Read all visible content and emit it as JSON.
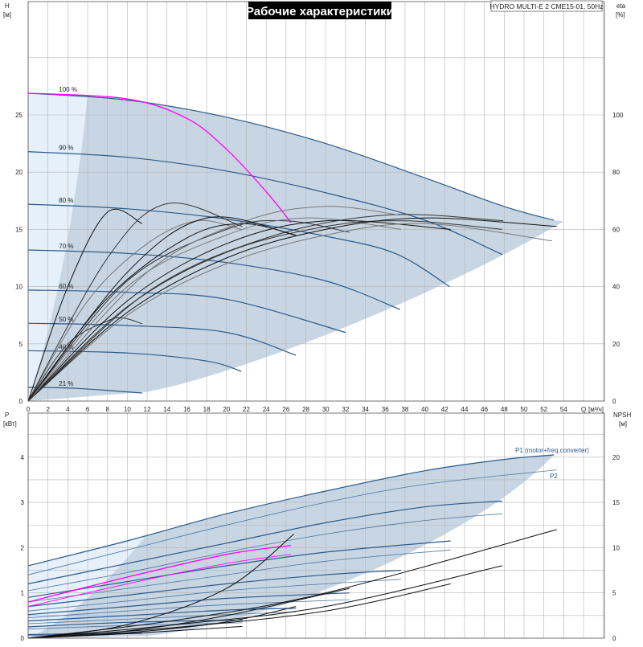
{
  "title": "Рабочие характеристики",
  "model": "HYDRO MULTI-E 2 CME15-01, 50Hz",
  "colors": {
    "area": "#c8d6e4",
    "area_light": "#e6f0fa",
    "curve_blue": "#2a5a8c",
    "curve_black": "#111111",
    "magenta": "#ff00ff",
    "grid": "#b4b4b4",
    "title_bg": "#000000",
    "title_fg": "#ffffff"
  },
  "chart_data": [
    {
      "id": "head",
      "type": "line",
      "ylabel": "H",
      "yunit": "[м]",
      "y2label": "eta",
      "y2unit": "[%]",
      "xlabel": "Q",
      "xunit": "[м³/ч]",
      "xlim": [
        0,
        60
      ],
      "ylim": [
        0,
        30
      ],
      "y2lim": [
        0,
        120
      ],
      "xticks": [
        0,
        2,
        4,
        6,
        8,
        10,
        12,
        14,
        16,
        18,
        20,
        22,
        24,
        26,
        28,
        30,
        32,
        34,
        36,
        38,
        40,
        42,
        44,
        46,
        48,
        50,
        52,
        54
      ],
      "yticks": [
        0,
        5,
        10,
        15,
        20,
        25
      ],
      "y2ticks": [
        0,
        20,
        40,
        60,
        80,
        100
      ],
      "grid": true,
      "speed_curves": [
        {
          "name": "100 %",
          "q": [
            0,
            10,
            20,
            30,
            40,
            48,
            53
          ],
          "h": [
            26.9,
            26.3,
            24.8,
            22.5,
            19.5,
            17.0,
            15.8
          ]
        },
        {
          "name": "90 %",
          "q": [
            0,
            10,
            20,
            30,
            40,
            47.8
          ],
          "h": [
            21.8,
            21.3,
            20.1,
            18.2,
            15.8,
            12.8
          ]
        },
        {
          "name": "80 %",
          "q": [
            0,
            10,
            20,
            30,
            37,
            42.5
          ],
          "h": [
            17.2,
            16.8,
            15.9,
            14.4,
            12.9,
            10.0
          ]
        },
        {
          "name": "70 %",
          "q": [
            0,
            10,
            20,
            30,
            37.5
          ],
          "h": [
            13.2,
            12.9,
            12.1,
            10.5,
            8.0
          ]
        },
        {
          "name": "60 %",
          "q": [
            0,
            10,
            20,
            32
          ],
          "h": [
            9.7,
            9.5,
            8.9,
            6.0
          ]
        },
        {
          "name": "50 %",
          "q": [
            0,
            10,
            20,
            27
          ],
          "h": [
            6.8,
            6.6,
            6.0,
            4.0
          ]
        },
        {
          "name": "40 %",
          "q": [
            0,
            10,
            18,
            21.5
          ],
          "h": [
            4.4,
            4.2,
            3.5,
            2.6
          ]
        },
        {
          "name": "21 %",
          "q": [
            0,
            5,
            11.5
          ],
          "h": [
            1.2,
            1.1,
            0.7
          ]
        }
      ],
      "operating_point_curve": {
        "q": [
          0,
          10,
          16,
          20,
          24,
          26.5
        ],
        "h": [
          26.9,
          26.4,
          24.7,
          22.0,
          18.3,
          15.6
        ]
      },
      "efficiency_curves": [
        {
          "q": [
            0,
            4,
            8,
            11.5
          ],
          "eta": [
            0,
            40,
            66,
            62
          ]
        },
        {
          "q": [
            0,
            4,
            8,
            9.6,
            11.5
          ],
          "eta": [
            0,
            20,
            28,
            29,
            27
          ]
        },
        {
          "q": [
            0,
            6,
            12,
            17,
            21.5
          ],
          "eta": [
            0,
            35,
            55,
            63,
            60
          ]
        },
        {
          "q": [
            0,
            8,
            16,
            21.6,
            27
          ],
          "eta": [
            0,
            36,
            57,
            62,
            58
          ]
        },
        {
          "q": [
            0,
            10,
            20,
            26,
            32.4
          ],
          "eta": [
            0,
            42,
            60,
            63,
            59
          ]
        },
        {
          "q": [
            0,
            10,
            20,
            28,
            37.6
          ],
          "eta": [
            0,
            40,
            58,
            64,
            60
          ]
        },
        {
          "q": [
            0,
            10,
            20,
            30,
            42.6
          ],
          "eta": [
            0,
            35,
            55,
            63,
            60
          ]
        },
        {
          "q": [
            0,
            10,
            20,
            30,
            38,
            47.8
          ],
          "eta": [
            0,
            33,
            52,
            61,
            63,
            60
          ]
        },
        {
          "q": [
            0,
            10,
            20,
            30,
            40,
            52.8
          ],
          "eta": [
            0,
            30,
            48,
            58,
            62,
            56
          ]
        },
        {
          "q": [
            0,
            10,
            20,
            30,
            40,
            53.3
          ],
          "eta": [
            0,
            31,
            50,
            60,
            64,
            61
          ]
        },
        {
          "q": [
            0,
            12,
            24,
            36,
            47.9
          ],
          "eta": [
            0,
            38,
            57,
            65,
            63
          ]
        },
        {
          "q": [
            0,
            12,
            22,
            30,
            37.5
          ],
          "eta": [
            0,
            45,
            63,
            68,
            65
          ]
        },
        {
          "q": [
            0,
            10,
            18,
            26.9
          ],
          "eta": [
            0,
            45,
            64,
            58
          ]
        },
        {
          "q": [
            0,
            8,
            14,
            21.6
          ],
          "eta": [
            0,
            50,
            69,
            61
          ]
        }
      ]
    },
    {
      "id": "power",
      "type": "line",
      "ylabel": "P",
      "yunit": "[кВт]",
      "y2label": "NPSH",
      "y2unit": "[м]",
      "xlim": [
        0,
        60
      ],
      "ylim": [
        0,
        4.8
      ],
      "y2lim": [
        0,
        24
      ],
      "yticks": [
        0,
        1,
        2,
        3,
        4
      ],
      "y2ticks": [
        0,
        5,
        10,
        15,
        20
      ],
      "grid": true,
      "labels": [
        "P1 (motor+freq.converter)",
        "P2"
      ],
      "p1_curves": [
        {
          "q": [
            0,
            10,
            20,
            30,
            40,
            48,
            53
          ],
          "p": [
            1.6,
            2.15,
            2.75,
            3.25,
            3.7,
            3.95,
            4.05
          ]
        },
        {
          "q": [
            0,
            10,
            20,
            30,
            40,
            47.8
          ],
          "p": [
            1.2,
            1.65,
            2.1,
            2.55,
            2.9,
            3.03
          ]
        },
        {
          "q": [
            0,
            10,
            20,
            30,
            42.6
          ],
          "p": [
            0.9,
            1.25,
            1.6,
            1.9,
            2.15
          ]
        },
        {
          "q": [
            0,
            10,
            20,
            30,
            37.6
          ],
          "p": [
            0.7,
            0.95,
            1.2,
            1.4,
            1.5
          ]
        },
        {
          "q": [
            0,
            10,
            20,
            32.4
          ],
          "p": [
            0.52,
            0.7,
            0.88,
            1.0
          ]
        },
        {
          "q": [
            0,
            10,
            20,
            27
          ],
          "p": [
            0.38,
            0.5,
            0.62,
            0.66
          ]
        },
        {
          "q": [
            0,
            10,
            21.6
          ],
          "p": [
            0.25,
            0.35,
            0.4
          ]
        },
        {
          "q": [
            0,
            11.5
          ],
          "p": [
            0.08,
            0.12
          ]
        }
      ],
      "p2_curves": [
        {
          "q": [
            0,
            10,
            20,
            30,
            40,
            53.3
          ],
          "p": [
            1.4,
            1.95,
            2.5,
            3.0,
            3.4,
            3.72
          ]
        },
        {
          "q": [
            0,
            10,
            20,
            30,
            40,
            47.8
          ],
          "p": [
            1.05,
            1.45,
            1.9,
            2.3,
            2.6,
            2.75
          ]
        },
        {
          "q": [
            0,
            10,
            20,
            30,
            42.6
          ],
          "p": [
            0.8,
            1.1,
            1.4,
            1.7,
            1.95
          ]
        },
        {
          "q": [
            0,
            10,
            20,
            30,
            37.6
          ],
          "p": [
            0.6,
            0.82,
            1.05,
            1.2,
            1.3
          ]
        },
        {
          "q": [
            0,
            10,
            20,
            32.4
          ],
          "p": [
            0.45,
            0.6,
            0.74,
            0.85
          ]
        },
        {
          "q": [
            0,
            10,
            20,
            27
          ],
          "p": [
            0.32,
            0.42,
            0.52,
            0.58
          ]
        },
        {
          "q": [
            0,
            10,
            21.6
          ],
          "p": [
            0.2,
            0.28,
            0.34
          ]
        },
        {
          "q": [
            0,
            11.5
          ],
          "p": [
            0.06,
            0.1
          ]
        }
      ],
      "operating_p1": {
        "q": [
          0,
          10,
          20,
          26.5
        ],
        "p": [
          0.8,
          1.35,
          1.85,
          2.05
        ]
      },
      "operating_p2": {
        "q": [
          0,
          10,
          20,
          26.5
        ],
        "p": [
          0.7,
          1.2,
          1.65,
          1.85
        ]
      },
      "npsh_curves": [
        {
          "q": [
            0,
            10,
            20,
            26.8
          ],
          "npsh": [
            0,
            1.5,
            5.5,
            11.5
          ]
        },
        {
          "q": [
            0,
            15,
            30,
            42.6
          ],
          "npsh": [
            0,
            1.2,
            3.0,
            6.0
          ]
        },
        {
          "q": [
            0,
            15,
            30,
            47.8
          ],
          "npsh": [
            0,
            1.5,
            3.5,
            8.0
          ]
        },
        {
          "q": [
            0,
            15,
            30,
            53.3
          ],
          "npsh": [
            0,
            2.0,
            5.0,
            12.0
          ]
        },
        {
          "q": [
            0,
            10,
            20,
            32.4
          ],
          "npsh": [
            0,
            0.8,
            2.5,
            5.5
          ]
        },
        {
          "q": [
            0,
            10,
            20,
            27
          ],
          "npsh": [
            0,
            0.6,
            1.8,
            3.5
          ]
        },
        {
          "q": [
            0,
            10,
            21.6
          ],
          "npsh": [
            0,
            0.5,
            1.3
          ]
        }
      ]
    }
  ]
}
